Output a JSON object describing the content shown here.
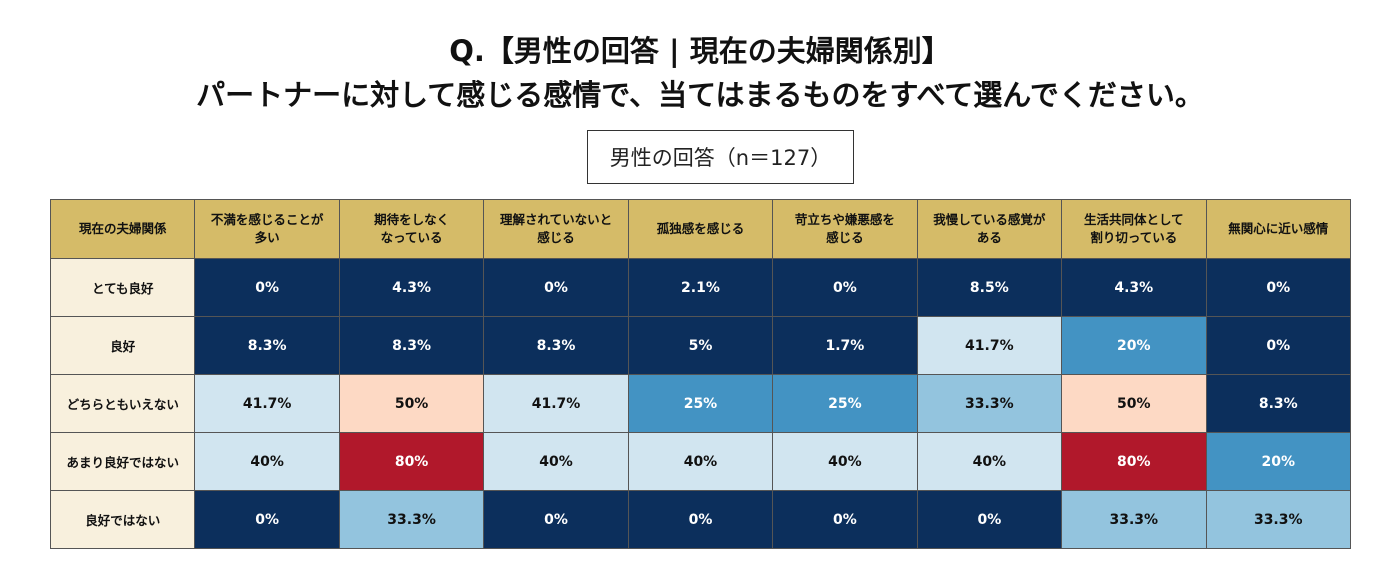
{
  "title_line1": "Q.【男性の回答 | 現在の夫婦関係別】",
  "title_line2": "パートナーに対して感じる感情で、当てはまるものをすべて選んでください。",
  "subtitle": "男性の回答（n＝127）",
  "chart_data": {
    "type": "heatmap",
    "corner_label": "現在の夫婦関係",
    "columns": [
      "不満を感じることが\n多い",
      "期待をしなく\nなっている",
      "理解されていないと\n感じる",
      "孤独感を感じる",
      "苛立ちや嫌悪感を\n感じる",
      "我慢している感覚が\nある",
      "生活共同体として\n割り切っている",
      "無関心に近い感情"
    ],
    "rows": [
      "とても良好",
      "良好",
      "どちらともいえない",
      "あまり良好ではない",
      "良好ではない"
    ],
    "values": [
      [
        0,
        4.3,
        0,
        2.1,
        0,
        8.5,
        4.3,
        0
      ],
      [
        8.3,
        8.3,
        8.3,
        5,
        1.7,
        41.7,
        20,
        0
      ],
      [
        41.7,
        50,
        41.7,
        25,
        25,
        33.3,
        50,
        8.3
      ],
      [
        40,
        80,
        40,
        40,
        40,
        40,
        80,
        20
      ],
      [
        0,
        33.3,
        0,
        0,
        0,
        0,
        33.3,
        33.3
      ]
    ],
    "unit": "%",
    "colors": {
      "navy": "#0c2f5c",
      "mid_blue": "#4393c3",
      "light_blue2": "#93c4de",
      "light_blue": "#d1e5f0",
      "peach": "#fdd9c4",
      "red": "#b1182b",
      "header": "#d5bb68",
      "row_label": "#f8f0dd"
    }
  }
}
